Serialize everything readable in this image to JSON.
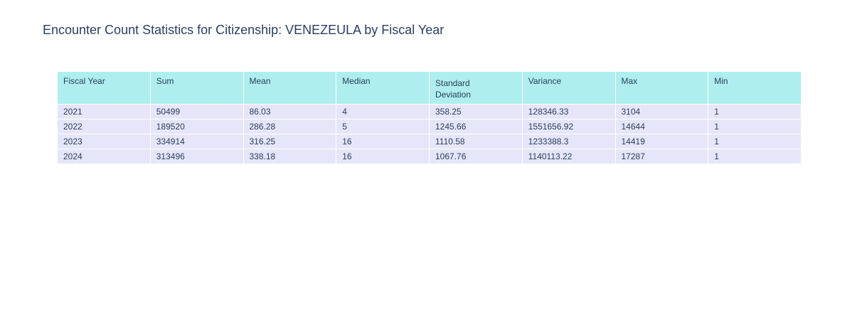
{
  "chart_data": {
    "type": "table",
    "title": "Encounter Count Statistics for Citizenship: VENEZEULA by Fiscal Year",
    "columns": [
      "Fiscal Year",
      "Sum",
      "Mean",
      "Median",
      "Standard Deviation",
      "Variance",
      "Max",
      "Min"
    ],
    "rows": [
      [
        "2021",
        "50499",
        "86.03",
        "4",
        "358.25",
        "128346.33",
        "3104",
        "1"
      ],
      [
        "2022",
        "189520",
        "286.28",
        "5",
        "1245.66",
        "1551656.92",
        "14644",
        "1"
      ],
      [
        "2023",
        "334914",
        "316.25",
        "16",
        "1110.58",
        "1233388.3",
        "14419",
        "1"
      ],
      [
        "2024",
        "313496",
        "338.18",
        "16",
        "1067.76",
        "1140113.22",
        "17287",
        "1"
      ]
    ],
    "header_fill": "#afeeee",
    "cell_fill": "#e6e6fa",
    "text_color": "#2a3f5f"
  }
}
